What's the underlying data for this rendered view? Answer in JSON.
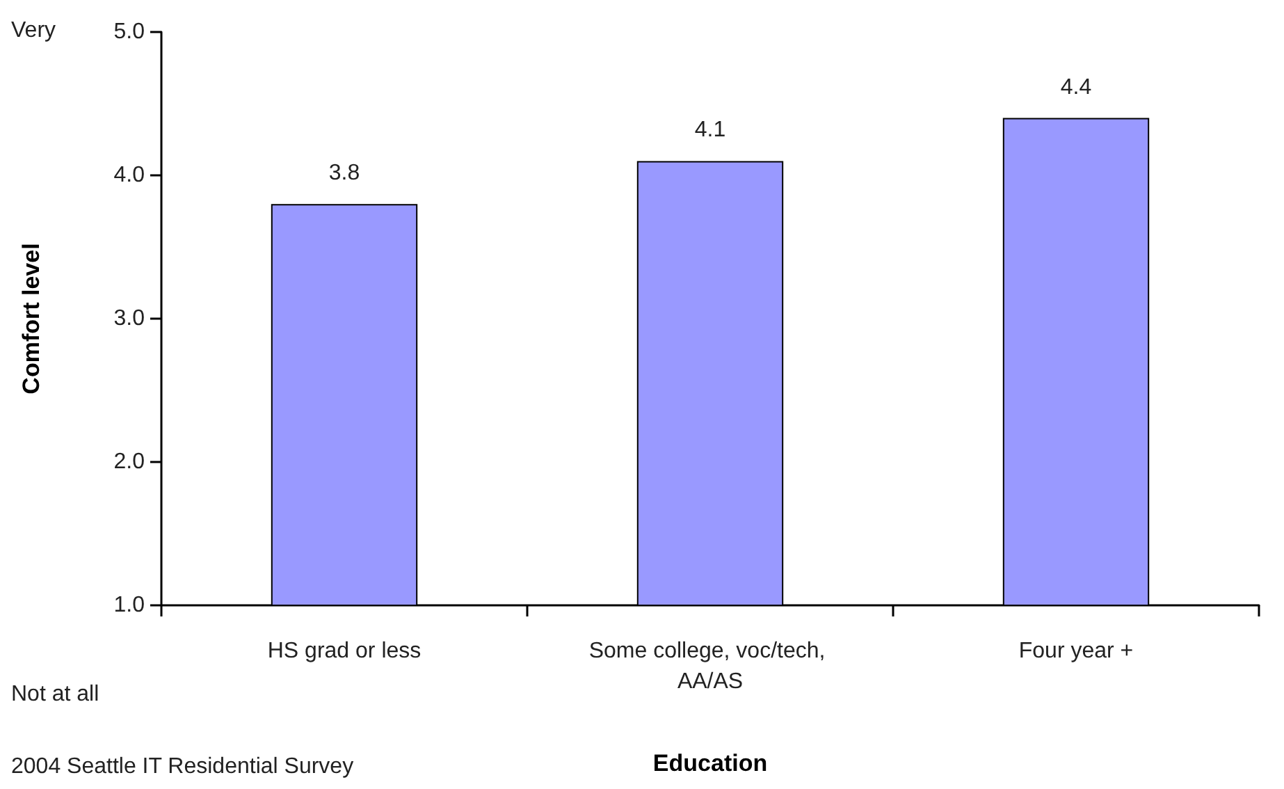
{
  "chart_data": {
    "type": "bar",
    "xlabel": "Education",
    "ylabel": "Comfort level",
    "categories": [
      "HS grad or less",
      "Some college, voc/tech, AA/AS",
      "Four year +"
    ],
    "values": [
      3.8,
      4.1,
      4.4
    ],
    "color": "#9999ff",
    "data_labels": true,
    "ylim": [
      1,
      5
    ],
    "yticks": [
      {
        "value": 1,
        "label": "1.0"
      },
      {
        "value": 2,
        "label": "2.0"
      },
      {
        "value": 3,
        "label": "3.0"
      },
      {
        "value": 4,
        "label": "4.0"
      },
      {
        "value": 5,
        "label": "5.0"
      }
    ],
    "grid": false,
    "annotations": [
      "Very",
      "Not at all",
      "2004 Seattle IT Residential Survey"
    ]
  }
}
